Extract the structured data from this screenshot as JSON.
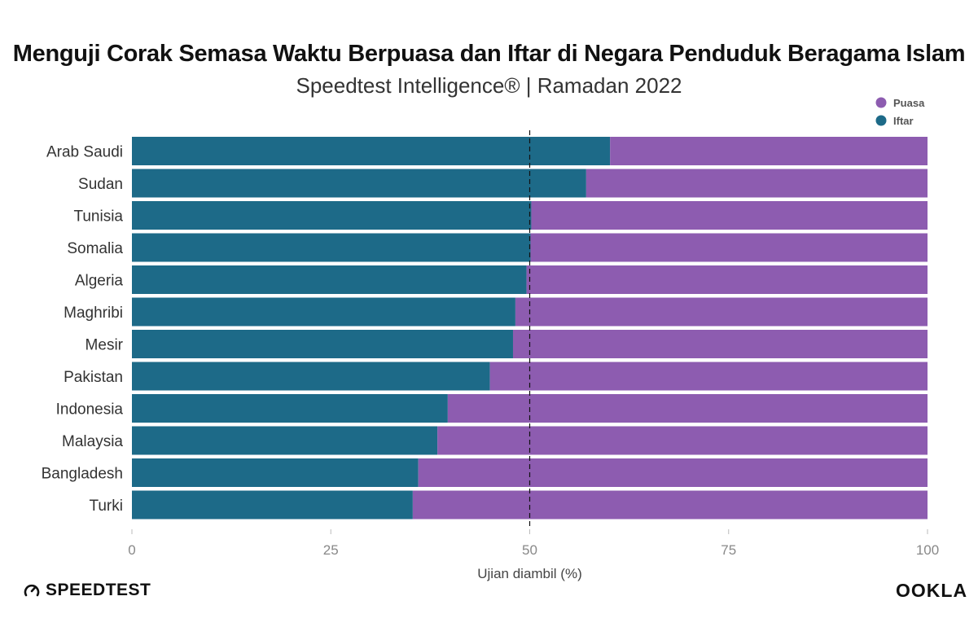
{
  "title": "Menguji Corak Semasa Waktu Berpuasa dan Iftar di Negara Penduduk Beragama Islam",
  "subtitle": "Speedtest Intelligence® | Ramadan 2022",
  "brand": {
    "left": "SPEEDTEST",
    "right": "OOKLA"
  },
  "colors": {
    "iftar": "#1d6a88",
    "puasa": "#8d5cb0",
    "reference_line": "#111111"
  },
  "chart_data": {
    "type": "bar",
    "orientation": "horizontal",
    "stacked": true,
    "categories": [
      "Arab Saudi",
      "Sudan",
      "Tunisia",
      "Somalia",
      "Algeria",
      "Maghribi",
      "Mesir",
      "Pakistan",
      "Indonesia",
      "Malaysia",
      "Bangladesh",
      "Turki"
    ],
    "series": [
      {
        "name": "Iftar",
        "color": "#1d6a88",
        "values": [
          60.1,
          57.1,
          50.2,
          50.1,
          49.6,
          48.2,
          47.9,
          45.0,
          39.7,
          38.4,
          36.0,
          35.3
        ]
      },
      {
        "name": "Puasa",
        "color": "#8d5cb0",
        "values": [
          39.9,
          42.9,
          49.8,
          49.9,
          50.4,
          51.8,
          52.1,
          55.0,
          60.3,
          61.6,
          64.0,
          64.7
        ]
      }
    ],
    "legend": {
      "position": "top-right",
      "items": [
        "Puasa",
        "Iftar"
      ]
    },
    "xlabel": "Ujian diambil (%)",
    "ylabel": "",
    "xlim": [
      0,
      100
    ],
    "xticks": [
      "0",
      "25",
      "50",
      "75",
      "100"
    ],
    "reference_line": 50,
    "grid": false
  }
}
